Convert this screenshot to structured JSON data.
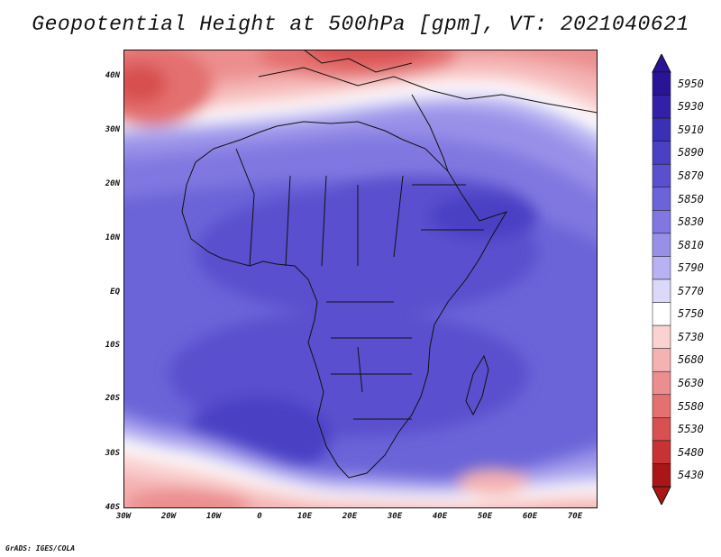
{
  "title": "Geopotential Height at 500hPa [gpm], VT: 2021040621",
  "credit": "GrADS: IGES/COLA",
  "map": {
    "lat_labels": [
      "40N",
      "30N",
      "20N",
      "10N",
      "EQ",
      "10S",
      "20S",
      "30S",
      "40S"
    ],
    "lon_labels": [
      "30W",
      "20W",
      "10W",
      "0",
      "10E",
      "20E",
      "30E",
      "40E",
      "50E",
      "60E",
      "70E"
    ],
    "lat_range": [
      -40,
      45
    ],
    "lon_range": [
      -30,
      75
    ]
  },
  "colorbar": {
    "levels": [
      "5950",
      "5930",
      "5910",
      "5890",
      "5870",
      "5850",
      "5830",
      "5810",
      "5790",
      "5770",
      "5750",
      "5730",
      "5680",
      "5630",
      "5580",
      "5530",
      "5480",
      "5430"
    ],
    "colors": [
      "#2a1496",
      "#3221a8",
      "#3a30b6",
      "#4a40c4",
      "#5a50ce",
      "#6a64d8",
      "#8078e0",
      "#9890e8",
      "#b8b2f2",
      "#dcd8fa",
      "#ffffff",
      "#fad2d2",
      "#f4b2b2",
      "#ec8e8e",
      "#e47070",
      "#d85050",
      "#c83232",
      "#aa1616"
    ],
    "extends": "both"
  }
}
